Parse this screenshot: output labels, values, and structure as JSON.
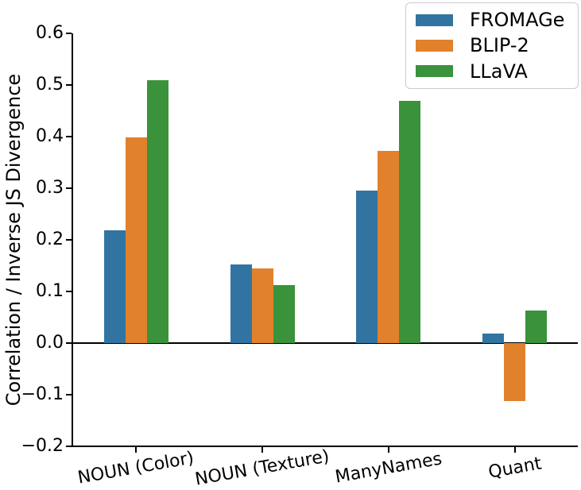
{
  "chart_data": {
    "type": "bar",
    "title": "",
    "xlabel": "",
    "ylabel": "Correlation / Inverse JS Divergence",
    "categories": [
      "NOUN (Color)",
      "NOUN (Texture)",
      "ManyNames",
      "Quant"
    ],
    "series": [
      {
        "name": "FROMAGe",
        "color": "#3274a1",
        "values": [
          0.219,
          0.153,
          0.295,
          0.018
        ]
      },
      {
        "name": "BLIP-2",
        "color": "#e1812c",
        "values": [
          0.399,
          0.145,
          0.373,
          -0.113
        ]
      },
      {
        "name": "LLaVA",
        "color": "#3a923a",
        "values": [
          0.509,
          0.112,
          0.47,
          0.063
        ]
      }
    ],
    "ylim": [
      -0.2,
      0.6
    ],
    "yticks": [
      0.6,
      0.5,
      0.4,
      0.3,
      0.2,
      0.1,
      0.0,
      -0.1,
      -0.2
    ],
    "grid": false,
    "zero_line": true,
    "legend_position": "upper right",
    "axis_color": "#000000",
    "legend_border_color": "#cccccc",
    "background_color": "#ffffff"
  }
}
